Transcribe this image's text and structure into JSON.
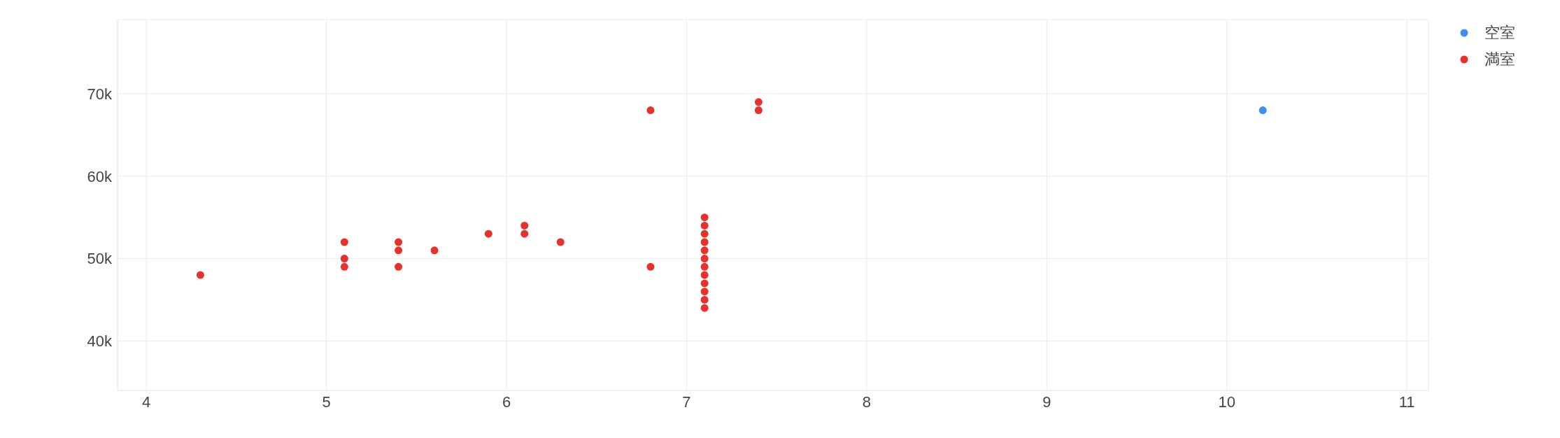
{
  "chart_data": {
    "type": "scatter",
    "grid": true,
    "legend": "top right",
    "marker": "circle",
    "xlim": [
      3.84,
      11.12
    ],
    "xticks": [
      4,
      5,
      6,
      7,
      8,
      9,
      10,
      11
    ],
    "ylim": [
      34000,
      79000
    ],
    "yticks": [
      {
        "value": 40000,
        "label": "40k"
      },
      {
        "value": 50000,
        "label": "50k"
      },
      {
        "value": 60000,
        "label": "60k"
      },
      {
        "value": 70000,
        "label": "70k"
      }
    ],
    "series": [
      {
        "name": "空室",
        "color": "#3d8ff0",
        "x": [
          10.2
        ],
        "values": [
          68000
        ]
      },
      {
        "name": "満室",
        "color": "#e8312a",
        "x": [
          4.3,
          5.1,
          5.1,
          5.1,
          5.4,
          5.4,
          5.4,
          5.6,
          5.9,
          6.1,
          6.1,
          6.3,
          6.8,
          6.8,
          7.1,
          7.1,
          7.1,
          7.1,
          7.1,
          7.1,
          7.1,
          7.1,
          7.1,
          7.1,
          7.1,
          7.1,
          7.4,
          7.4
        ],
        "values": [
          48000,
          52000,
          50000,
          49000,
          52000,
          51000,
          49000,
          51000,
          53000,
          54000,
          53000,
          52000,
          68000,
          49000,
          55000,
          54000,
          53000,
          52000,
          51000,
          50000,
          49000,
          48000,
          47000,
          46000,
          45000,
          44000,
          69000,
          68000
        ]
      }
    ]
  }
}
